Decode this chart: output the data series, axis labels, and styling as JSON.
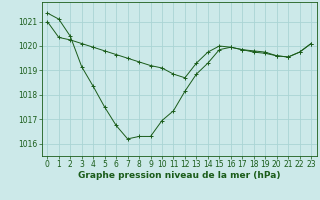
{
  "background_color": "#cce9e9",
  "grid_color": "#aad4d4",
  "line_color": "#1a5c1a",
  "marker_color": "#1a5c1a",
  "xlabel": "Graphe pression niveau de la mer (hPa)",
  "xlabel_fontsize": 6.5,
  "tick_fontsize": 5.5,
  "xlim": [
    -0.5,
    23.5
  ],
  "ylim": [
    1015.5,
    1021.8
  ],
  "yticks": [
    1016,
    1017,
    1018,
    1019,
    1020,
    1021
  ],
  "xticks": [
    0,
    1,
    2,
    3,
    4,
    5,
    6,
    7,
    8,
    9,
    10,
    11,
    12,
    13,
    14,
    15,
    16,
    17,
    18,
    19,
    20,
    21,
    22,
    23
  ],
  "series1_x": [
    0,
    1,
    2,
    3,
    4,
    5,
    6,
    7,
    8,
    9,
    10,
    11,
    12,
    13,
    14,
    15,
    16,
    17,
    18,
    19,
    20,
    21,
    22,
    23
  ],
  "series1_y": [
    1021.35,
    1021.1,
    1020.4,
    1019.15,
    1018.35,
    1017.5,
    1016.75,
    1016.2,
    1016.3,
    1016.3,
    1016.95,
    1017.35,
    1018.15,
    1018.85,
    1019.3,
    1019.85,
    1019.95,
    1019.85,
    1019.8,
    1019.75,
    1019.6,
    1019.55,
    1019.75,
    1020.1
  ],
  "series2_x": [
    0,
    1,
    2,
    3,
    4,
    5,
    6,
    7,
    8,
    9,
    10,
    11,
    12,
    13,
    14,
    15,
    16,
    17,
    18,
    19,
    20,
    21,
    22,
    23
  ],
  "series2_y": [
    1021.0,
    1020.35,
    1020.25,
    1020.1,
    1019.95,
    1019.8,
    1019.65,
    1019.5,
    1019.35,
    1019.2,
    1019.1,
    1018.85,
    1018.7,
    1019.3,
    1019.75,
    1020.0,
    1019.95,
    1019.85,
    1019.75,
    1019.7,
    1019.6,
    1019.55,
    1019.75,
    1020.1
  ]
}
